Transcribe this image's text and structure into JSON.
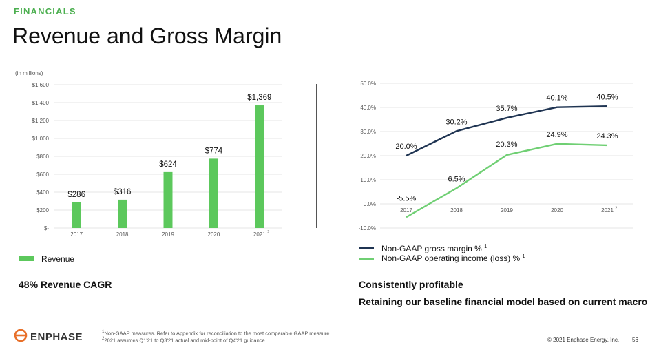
{
  "header": {
    "section_label": "FINANCIALS",
    "title": "Revenue and Gross Margin"
  },
  "left_panel": {
    "unit_note": "(in millions)",
    "legend_label": "Revenue",
    "takeaway": "48% Revenue CAGR"
  },
  "right_panel": {
    "legend": [
      {
        "label": "Non-GAAP gross margin %",
        "sup": "1"
      },
      {
        "label": "Non-GAAP operating income (loss) %",
        "sup": "1"
      }
    ],
    "takeaway_1": "Consistently profitable",
    "takeaway_2": "Retaining our baseline financial model based on current macro"
  },
  "footer": {
    "logo_text": "ENPHASE",
    "footnote_1": "Non-GAAP measures. Refer to Appendix for reconciliation to the most comparable GAAP measure",
    "footnote_1_marker": "1",
    "footnote_2": "2021 assumes Q1'21 to Q3'21 actual and mid-point of Q4'21 guidance",
    "footnote_2_marker": "2",
    "copyright": "© 2021 Enphase Energy, Inc.",
    "page_number": "56"
  },
  "colors": {
    "accent_green": "#4caf50",
    "bar_green": "#5cc85c",
    "line_navy": "#1f3452",
    "line_green": "#6fcf73",
    "logo_orange": "#e8702a"
  },
  "chart_data": [
    {
      "type": "bar",
      "title": "Revenue",
      "ylabel": "(in millions)",
      "categories": [
        "2017",
        "2018",
        "2019",
        "2020",
        "2021"
      ],
      "category_superscripts": [
        "",
        "",
        "",
        "",
        "2"
      ],
      "values": [
        286,
        316,
        624,
        774,
        1369
      ],
      "data_labels": [
        "$286",
        "$316",
        "$624",
        "$774",
        "$1,369"
      ],
      "ylim": [
        0,
        1600
      ],
      "yticks": [
        0,
        200,
        400,
        600,
        800,
        1000,
        1200,
        1400,
        1600
      ],
      "ytick_labels": [
        "$-",
        "$200",
        "$400",
        "$600",
        "$800",
        "$1,000",
        "$1,200",
        "$1,400",
        "$1,600"
      ],
      "grid": true
    },
    {
      "type": "line",
      "categories": [
        "2017",
        "2018",
        "2019",
        "2020",
        "2021"
      ],
      "category_superscripts": [
        "",
        "",
        "",
        "",
        "2"
      ],
      "series": [
        {
          "name": "Non-GAAP gross margin %",
          "values": [
            20.0,
            30.2,
            35.7,
            40.1,
            40.5
          ],
          "labels": [
            "20.0%",
            "30.2%",
            "35.7%",
            "40.1%",
            "40.5%"
          ]
        },
        {
          "name": "Non-GAAP operating income (loss) %",
          "values": [
            -5.5,
            6.5,
            20.3,
            24.9,
            24.3
          ],
          "labels": [
            "-5.5%",
            "6.5%",
            "20.3%",
            "24.9%",
            "24.3%"
          ]
        }
      ],
      "ylim": [
        -10,
        50
      ],
      "yticks": [
        -10,
        0,
        10,
        20,
        30,
        40,
        50
      ],
      "ytick_labels": [
        "-10.0%",
        "0.0%",
        "10.0%",
        "20.0%",
        "30.0%",
        "40.0%",
        "50.0%"
      ],
      "grid": true
    }
  ]
}
